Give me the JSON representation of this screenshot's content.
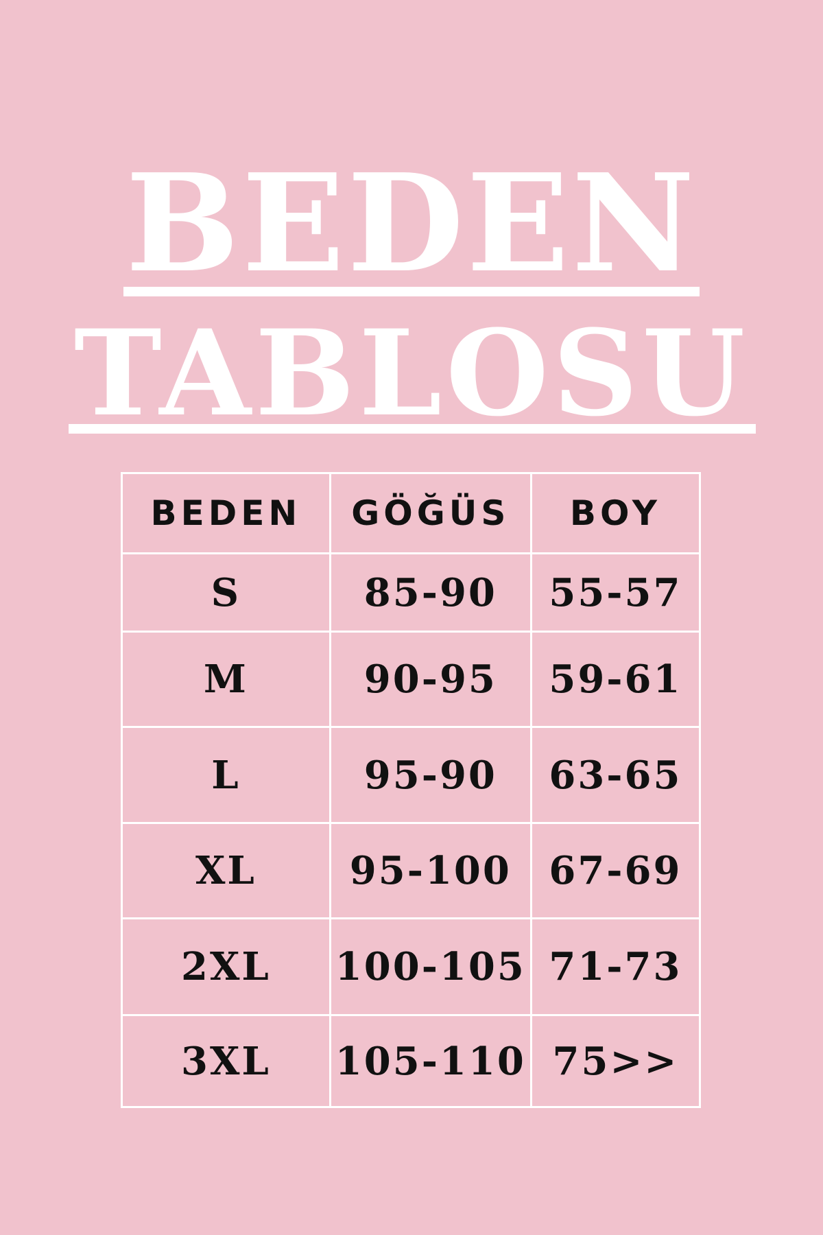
{
  "title": {
    "line1": "BEDEN",
    "line2": "TABLOSU"
  },
  "colors": {
    "background": "#f1c2cd",
    "title": "#ffffff",
    "text": "#111111",
    "grid": "#ffffff"
  },
  "table": {
    "headers": [
      "BEDEN",
      "GÖĞÜS",
      "BOY"
    ],
    "rows": [
      [
        "S",
        "85-90",
        "55-57"
      ],
      [
        "M",
        "90-95",
        "59-61"
      ],
      [
        "L",
        "95-90",
        "63-65"
      ],
      [
        "XL",
        "95-100",
        "67-69"
      ],
      [
        "2XL",
        "100-105",
        "71-73"
      ],
      [
        "3XL",
        "105-110",
        "75>>"
      ]
    ]
  }
}
